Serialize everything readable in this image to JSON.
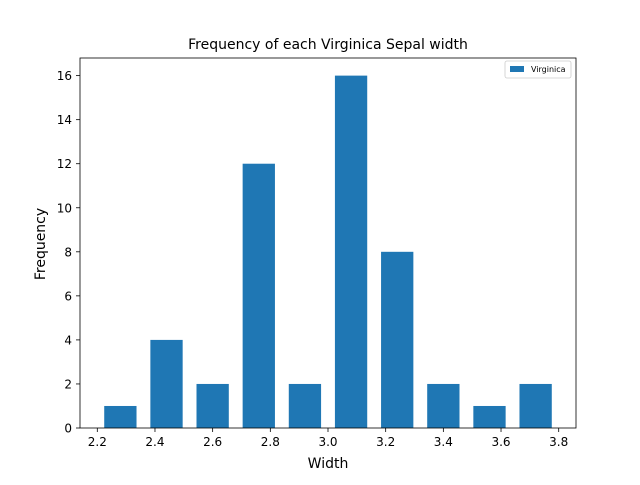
{
  "chart_data": {
    "type": "bar",
    "title": "Frequency of each Virginica Sepal width",
    "xlabel": "Width",
    "ylabel": "Frequency",
    "xlim": [
      2.14,
      3.86
    ],
    "ylim": [
      0,
      16.8
    ],
    "xticks": [
      2.2,
      2.4,
      2.6,
      2.8,
      3.0,
      3.2,
      3.4,
      3.6,
      3.8
    ],
    "xtick_labels": [
      "2.2",
      "2.4",
      "2.6",
      "2.8",
      "3.0",
      "3.2",
      "3.4",
      "3.6",
      "3.8"
    ],
    "yticks": [
      0,
      2,
      4,
      6,
      8,
      10,
      12,
      14,
      16
    ],
    "ytick_labels": [
      "0",
      "2",
      "4",
      "6",
      "8",
      "10",
      "12",
      "14",
      "16"
    ],
    "bar_width": 0.112,
    "series": [
      {
        "name": "Virginica",
        "color": "#1f77b4",
        "x": [
          2.28,
          2.44,
          2.6,
          2.76,
          2.92,
          3.08,
          3.24,
          3.4,
          3.56,
          3.72
        ],
        "values": [
          1,
          4,
          2,
          12,
          2,
          16,
          8,
          2,
          1,
          2
        ]
      }
    ],
    "legend": {
      "position": "top-right",
      "entries": [
        "Virginica"
      ]
    },
    "grid": false
  }
}
